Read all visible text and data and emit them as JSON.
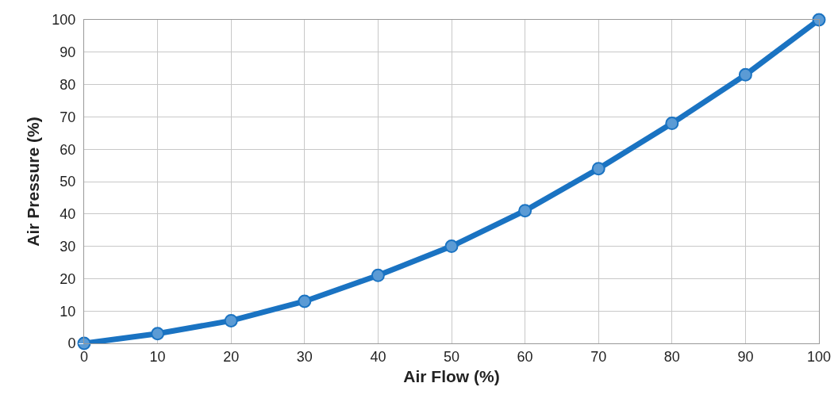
{
  "chart_data": {
    "type": "line",
    "xlabel": "Air Flow (%)",
    "ylabel": "Air Pressure (%)",
    "x": [
      0,
      10,
      20,
      30,
      40,
      50,
      60,
      70,
      80,
      90,
      100
    ],
    "series": [
      {
        "color": "#1a73c2",
        "values": [
          0,
          3,
          7,
          13,
          21,
          30,
          41,
          54,
          68,
          83,
          100
        ]
      }
    ],
    "xlim": [
      0,
      100
    ],
    "xticks": [
      0,
      10,
      20,
      30,
      40,
      50,
      60,
      70,
      80,
      90,
      100
    ],
    "ylim": [
      0,
      100
    ],
    "yticks": [
      0,
      10,
      20,
      30,
      40,
      50,
      60,
      70,
      80,
      90,
      100
    ],
    "grid": true,
    "marker": "circle",
    "line_style": "solid"
  }
}
